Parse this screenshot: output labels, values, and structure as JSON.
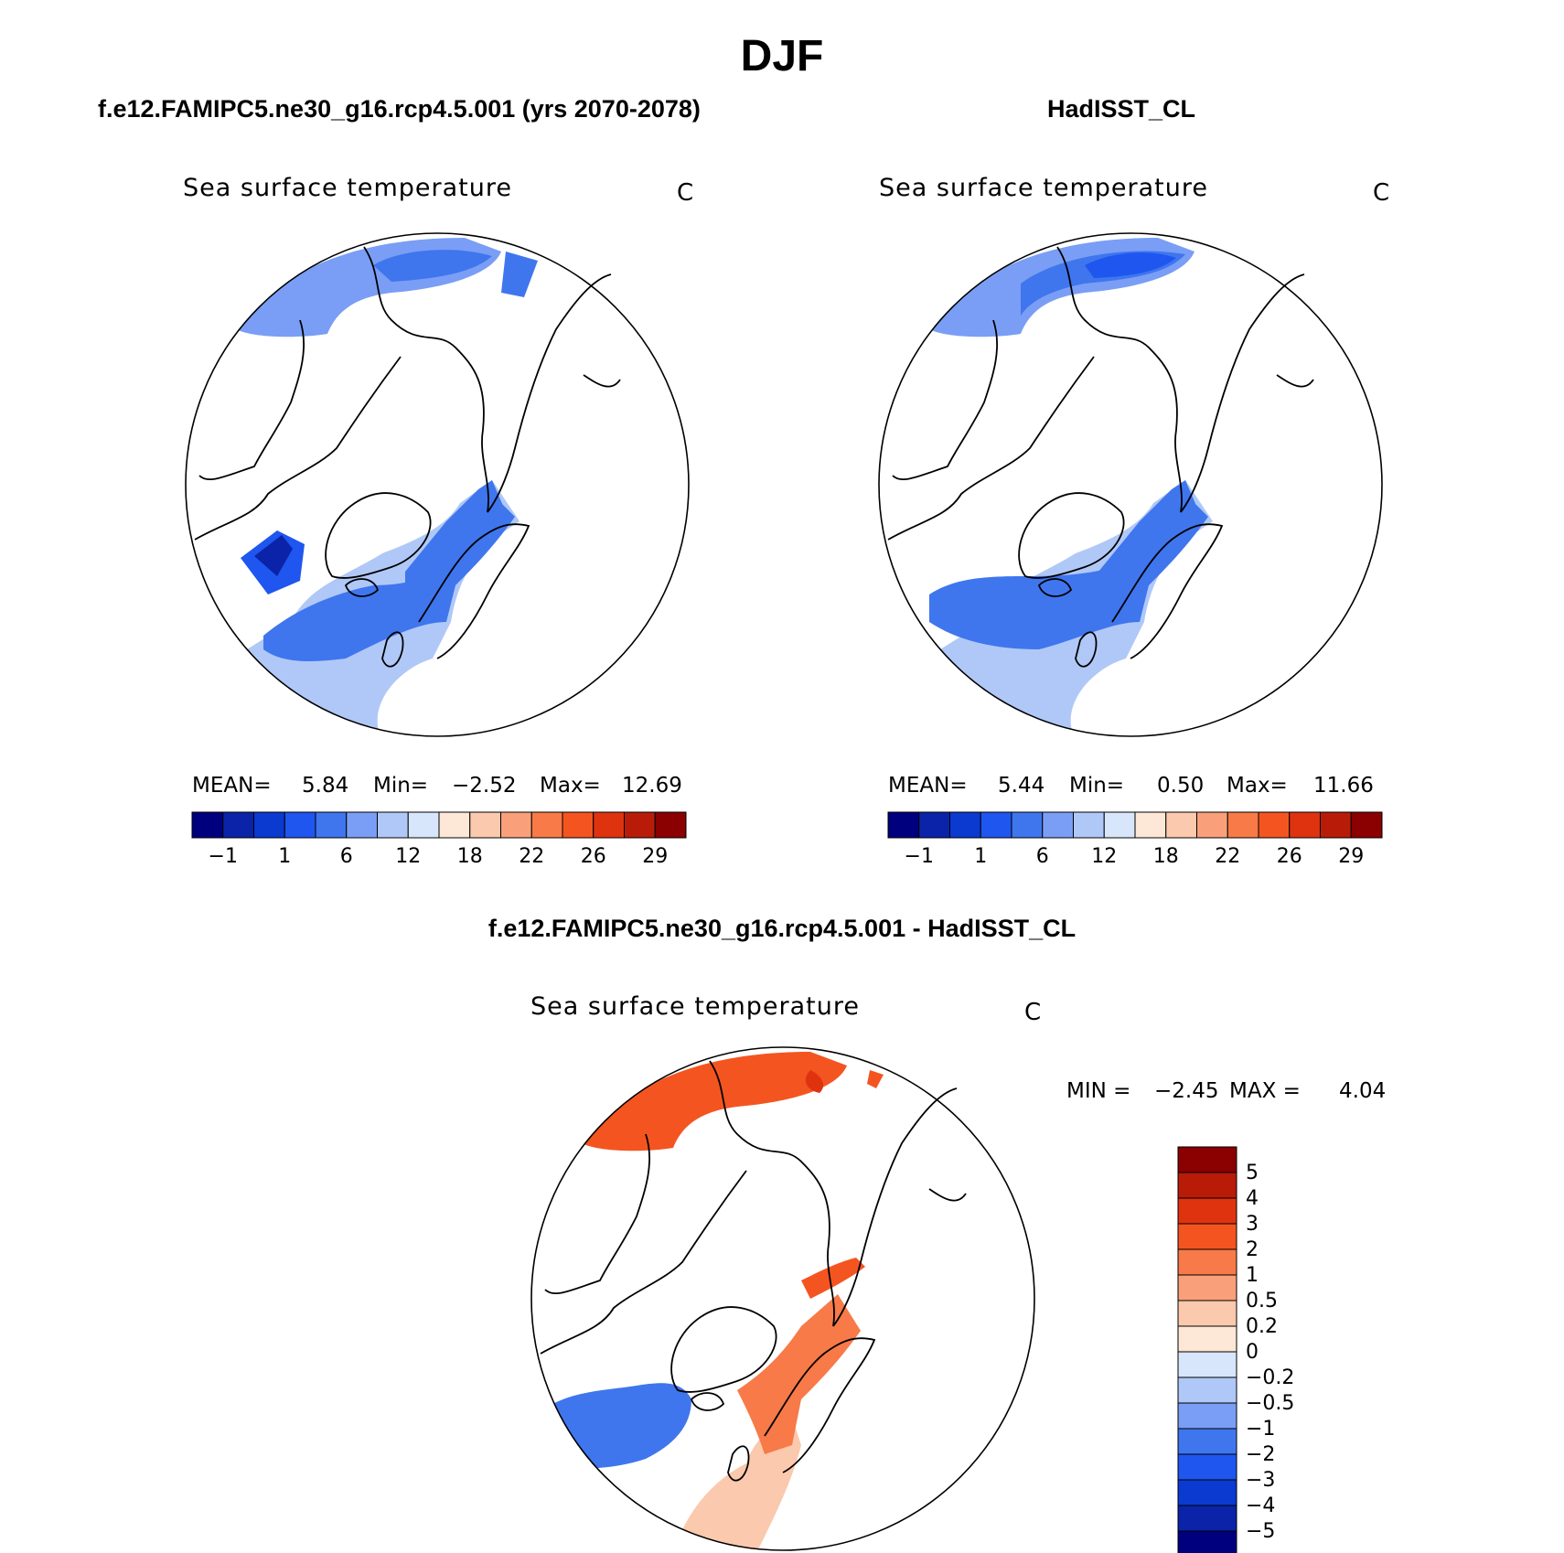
{
  "title": "DJF",
  "panels": [
    {
      "title": "f.e12.FAMIPC5.ne30_g16.rcp4.5.001 (yrs 2070-2078)",
      "variable": "Sea surface temperature",
      "units": "C",
      "stats": {
        "mean_label": "MEAN=",
        "mean": "5.84",
        "min_label": "Min=",
        "min": "−2.52",
        "max_label": "Max=",
        "max": "12.69"
      }
    },
    {
      "title": "HadISST_CL",
      "variable": "Sea surface temperature",
      "units": "C",
      "stats": {
        "mean_label": "MEAN=",
        "mean": "5.44",
        "min_label": "Min=",
        "min": "0.50",
        "max_label": "Max=",
        "max": "11.66"
      }
    },
    {
      "title": "f.e12.FAMIPC5.ne30_g16.rcp4.5.001 - HadISST_CL",
      "variable": "Sea surface temperature",
      "units": "C",
      "stats": {
        "min_label": "MIN =",
        "min": "−2.45",
        "max_label": "MAX =",
        "max": "4.04"
      }
    }
  ],
  "chart_data": [
    {
      "type": "heatmap",
      "projection": "north-polar-stereographic",
      "title": "f.e12.FAMIPC5.ne30_g16.rcp4.5.001 (yrs 2070-2078)",
      "subtitle": "Sea surface temperature",
      "units": "C",
      "mean": 5.84,
      "min": -2.52,
      "max": 12.69,
      "colorbar": {
        "orientation": "horizontal",
        "colors": [
          "#00007f",
          "#0a23a8",
          "#0a3ad0",
          "#1f56f0",
          "#3f76ee",
          "#7a9ef5",
          "#b0c8f7",
          "#d7e6fa",
          "#fde7d6",
          "#fbc9ad",
          "#f9a07a",
          "#f77a48",
          "#f45520",
          "#df3310",
          "#b81c08",
          "#8b0000"
        ],
        "tick_labels": [
          "−1",
          "1",
          "6",
          "12",
          "18",
          "22",
          "26",
          "29"
        ]
      }
    },
    {
      "type": "heatmap",
      "projection": "north-polar-stereographic",
      "title": "HadISST_CL",
      "subtitle": "Sea surface temperature",
      "units": "C",
      "mean": 5.44,
      "min": 0.5,
      "max": 11.66,
      "colorbar": {
        "orientation": "horizontal",
        "colors": [
          "#00007f",
          "#0a23a8",
          "#0a3ad0",
          "#1f56f0",
          "#3f76ee",
          "#7a9ef5",
          "#b0c8f7",
          "#d7e6fa",
          "#fde7d6",
          "#fbc9ad",
          "#f9a07a",
          "#f77a48",
          "#f45520",
          "#df3310",
          "#b81c08",
          "#8b0000"
        ],
        "tick_labels": [
          "−1",
          "1",
          "6",
          "12",
          "18",
          "22",
          "26",
          "29"
        ]
      }
    },
    {
      "type": "heatmap",
      "projection": "north-polar-stereographic",
      "title": "f.e12.FAMIPC5.ne30_g16.rcp4.5.001 - HadISST_CL",
      "subtitle": "Sea surface temperature",
      "units": "C",
      "min": -2.45,
      "max": 4.04,
      "colorbar": {
        "orientation": "vertical",
        "colors_top_to_bottom": [
          "#8b0000",
          "#b81c08",
          "#df3310",
          "#f45520",
          "#f77a48",
          "#f9a07a",
          "#fbc9ad",
          "#fde7d6",
          "#d7e6fa",
          "#b0c8f7",
          "#7a9ef5",
          "#3f76ee",
          "#1f56f0",
          "#0a3ad0",
          "#0a23a8",
          "#00007f"
        ],
        "tick_labels_top_to_bottom": [
          "5",
          "4",
          "3",
          "2",
          "1",
          "0.5",
          "0.2",
          "0",
          "−0.2",
          "−0.5",
          "−1",
          "−2",
          "−3",
          "−4",
          "−5"
        ]
      }
    }
  ]
}
